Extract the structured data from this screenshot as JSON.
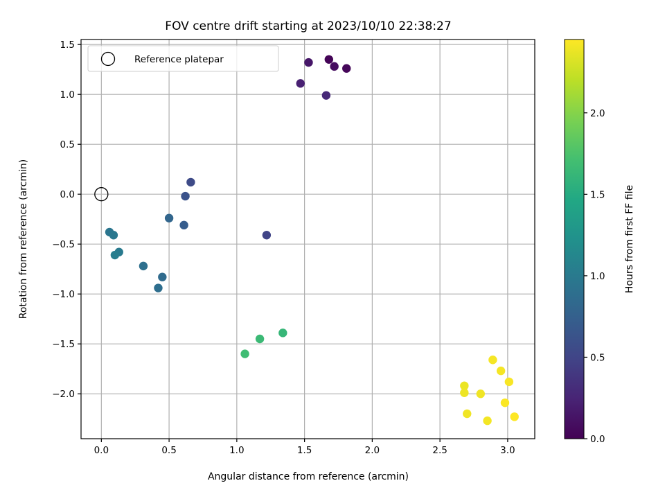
{
  "chart_data": {
    "type": "scatter",
    "title": "FOV centre drift starting at 2023/10/10 22:38:27",
    "xlabel": "Angular distance from reference (arcmin)",
    "ylabel": "Rotation from reference (arcmin)",
    "xlim": [
      -0.15,
      3.2
    ],
    "ylim": [
      -2.45,
      1.55
    ],
    "xticks": [
      0.0,
      0.5,
      1.0,
      1.5,
      2.0,
      2.5,
      3.0
    ],
    "xtick_labels": [
      "0.0",
      "0.5",
      "1.0",
      "1.5",
      "2.0",
      "2.5",
      "3.0"
    ],
    "yticks": [
      1.5,
      1.0,
      0.5,
      0.0,
      -0.5,
      -1.0,
      -1.5,
      -2.0
    ],
    "ytick_labels": [
      "1.5",
      "1.0",
      "0.5",
      "0.0",
      "−0.5",
      "−1.0",
      "−1.5",
      "−2.0"
    ],
    "grid": true,
    "legend": {
      "placement": "top-left",
      "entries": [
        "Reference platepar"
      ]
    },
    "reference_point": {
      "x": 0.0,
      "y": 0.0
    },
    "colormap": "viridis",
    "colorbar": {
      "label": "Hours from first FF file",
      "range": [
        0.0,
        2.45
      ],
      "ticks": [
        0.0,
        0.5,
        1.0,
        1.5,
        2.0
      ],
      "tick_labels": [
        "0.0",
        "0.5",
        "1.0",
        "1.5",
        "2.0"
      ]
    },
    "points": [
      {
        "x": 1.68,
        "y": 1.35,
        "hours": 0.02
      },
      {
        "x": 1.81,
        "y": 1.26,
        "hours": 0.04
      },
      {
        "x": 1.72,
        "y": 1.28,
        "hours": 0.08
      },
      {
        "x": 1.53,
        "y": 1.32,
        "hours": 0.15
      },
      {
        "x": 1.47,
        "y": 1.11,
        "hours": 0.22
      },
      {
        "x": 1.66,
        "y": 0.99,
        "hours": 0.28
      },
      {
        "x": 1.22,
        "y": -0.41,
        "hours": 0.5
      },
      {
        "x": 0.66,
        "y": 0.12,
        "hours": 0.55
      },
      {
        "x": 0.62,
        "y": -0.02,
        "hours": 0.62
      },
      {
        "x": 0.61,
        "y": -0.31,
        "hours": 0.72
      },
      {
        "x": 0.5,
        "y": -0.24,
        "hours": 0.8
      },
      {
        "x": 0.45,
        "y": -0.83,
        "hours": 0.85
      },
      {
        "x": 0.42,
        "y": -0.94,
        "hours": 0.88
      },
      {
        "x": 0.31,
        "y": -0.72,
        "hours": 0.9
      },
      {
        "x": 0.06,
        "y": -0.38,
        "hours": 0.95
      },
      {
        "x": 0.09,
        "y": -0.41,
        "hours": 0.97
      },
      {
        "x": 0.13,
        "y": -0.58,
        "hours": 1.0
      },
      {
        "x": 0.1,
        "y": -0.61,
        "hours": 1.03
      },
      {
        "x": 1.34,
        "y": -1.39,
        "hours": 1.62
      },
      {
        "x": 1.17,
        "y": -1.45,
        "hours": 1.65
      },
      {
        "x": 1.06,
        "y": -1.6,
        "hours": 1.68
      },
      {
        "x": 2.68,
        "y": -1.92,
        "hours": 2.38
      },
      {
        "x": 2.68,
        "y": -1.99,
        "hours": 2.39
      },
      {
        "x": 2.8,
        "y": -2.0,
        "hours": 2.4
      },
      {
        "x": 2.7,
        "y": -2.2,
        "hours": 2.4
      },
      {
        "x": 2.85,
        "y": -2.27,
        "hours": 2.41
      },
      {
        "x": 2.89,
        "y": -1.66,
        "hours": 2.42
      },
      {
        "x": 2.95,
        "y": -1.77,
        "hours": 2.42
      },
      {
        "x": 3.01,
        "y": -1.88,
        "hours": 2.43
      },
      {
        "x": 2.98,
        "y": -2.09,
        "hours": 2.44
      },
      {
        "x": 3.05,
        "y": -2.23,
        "hours": 2.45
      }
    ]
  }
}
